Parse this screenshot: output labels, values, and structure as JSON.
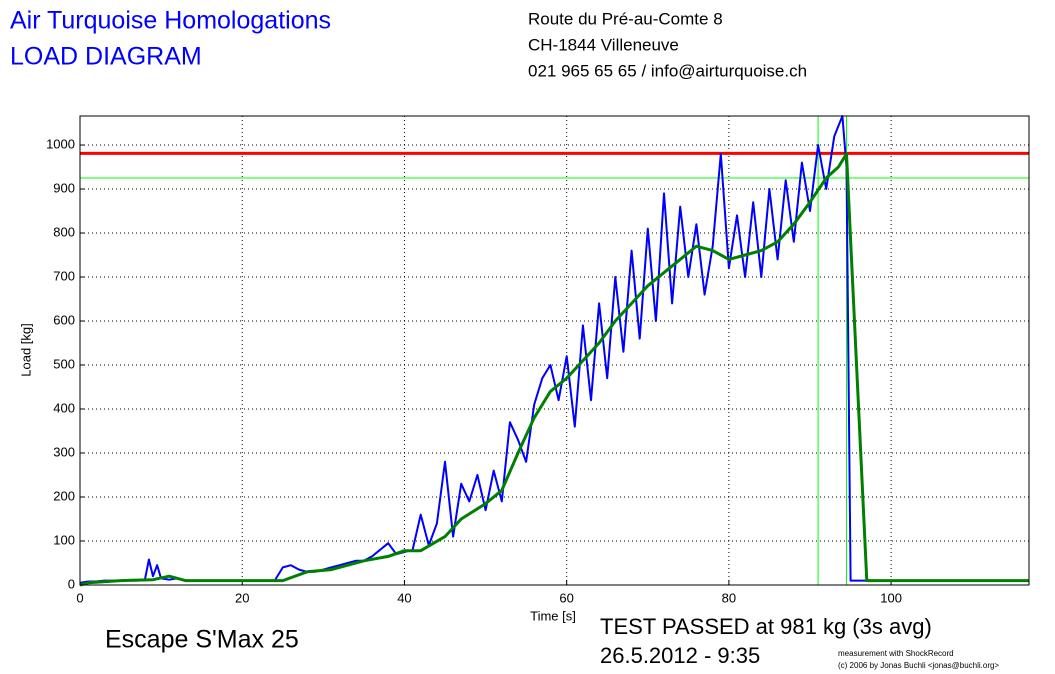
{
  "header": {
    "title": "Air Turquoise Homologations",
    "subtitle": "LOAD DIAGRAM",
    "address": [
      "Route du Pré-au-Comte 8",
      "CH-1844 Villeneuve",
      "021 965 65 65 / info@airturquoise.ch"
    ]
  },
  "footer": {
    "glider": "Escape S'Max 25",
    "result": "TEST PASSED at 981 kg (3s avg)",
    "date": "26.5.2012 - 9:35",
    "credit": [
      "measurement with ShockRecord",
      "(c) 2006 by Jonas Buchli <jonas@buchli.org>"
    ]
  },
  "chart_data": {
    "type": "line",
    "x_label": "Time [s]",
    "y_label": "Load [kg]",
    "xlim": [
      0,
      117
    ],
    "ylim": [
      0,
      1066
    ],
    "xticks": [
      0,
      20,
      40,
      60,
      80,
      100
    ],
    "yticks": [
      0,
      100,
      200,
      300,
      400,
      500,
      600,
      700,
      800,
      900,
      1000
    ],
    "grid": true,
    "series": [
      {
        "color": "#0000ff",
        "x": [
          0,
          1,
          2,
          3,
          4,
          5,
          6,
          7,
          8,
          8.5,
          9,
          9.5,
          10,
          11,
          12,
          13,
          14,
          24,
          25,
          26,
          27,
          28,
          29,
          30,
          31,
          32,
          33,
          34,
          35,
          36,
          37,
          38,
          39,
          40,
          41,
          42,
          43,
          44,
          45,
          46,
          47,
          48,
          49,
          50,
          51,
          52,
          53,
          54,
          55,
          56,
          57,
          58,
          59,
          60,
          61,
          62,
          63,
          64,
          65,
          66,
          67,
          68,
          69,
          70,
          71,
          72,
          73,
          74,
          75,
          76,
          77,
          78,
          79,
          80,
          81,
          82,
          83,
          84,
          85,
          86,
          87,
          88,
          89,
          90,
          91,
          92,
          93,
          94,
          94.5,
          95,
          96,
          117
        ],
        "values": [
          5,
          8,
          8,
          10,
          10,
          10,
          10,
          10,
          12,
          58,
          20,
          45,
          15,
          12,
          15,
          10,
          10,
          10,
          40,
          45,
          35,
          30,
          30,
          35,
          40,
          45,
          50,
          55,
          55,
          65,
          80,
          95,
          70,
          75,
          80,
          160,
          90,
          140,
          280,
          110,
          230,
          190,
          250,
          170,
          260,
          190,
          370,
          330,
          280,
          410,
          470,
          500,
          420,
          520,
          360,
          590,
          420,
          640,
          470,
          700,
          530,
          760,
          560,
          810,
          600,
          890,
          640,
          860,
          700,
          820,
          660,
          770,
          980,
          720,
          840,
          700,
          870,
          700,
          900,
          740,
          920,
          780,
          960,
          850,
          1000,
          900,
          1020,
          1066,
          950,
          10,
          10,
          10
        ]
      },
      {
        "color": "#008000",
        "x": [
          0,
          1,
          5,
          9,
          11,
          13,
          25,
          28,
          31,
          35,
          38,
          40,
          42,
          45,
          47,
          50,
          52,
          54,
          56,
          58,
          60,
          62,
          64,
          66,
          68,
          70,
          72,
          74,
          76,
          78,
          80,
          82,
          84,
          86,
          88,
          90,
          92,
          93.5,
          94.5,
          97,
          100,
          117
        ],
        "values": [
          0,
          5,
          10,
          12,
          20,
          10,
          10,
          30,
          35,
          55,
          65,
          78,
          78,
          110,
          150,
          185,
          215,
          300,
          380,
          440,
          470,
          510,
          550,
          600,
          640,
          680,
          710,
          740,
          770,
          760,
          740,
          750,
          760,
          780,
          820,
          870,
          925,
          950,
          980,
          10,
          10,
          10
        ]
      }
    ],
    "hlines": [
      {
        "value": 981,
        "color": "#ff0000"
      },
      {
        "value": 925,
        "color": "#00ff00"
      }
    ],
    "vlines": [
      {
        "value": 91,
        "color": "#00ff00"
      },
      {
        "value": 94.5,
        "color": "#00ff00"
      }
    ]
  }
}
